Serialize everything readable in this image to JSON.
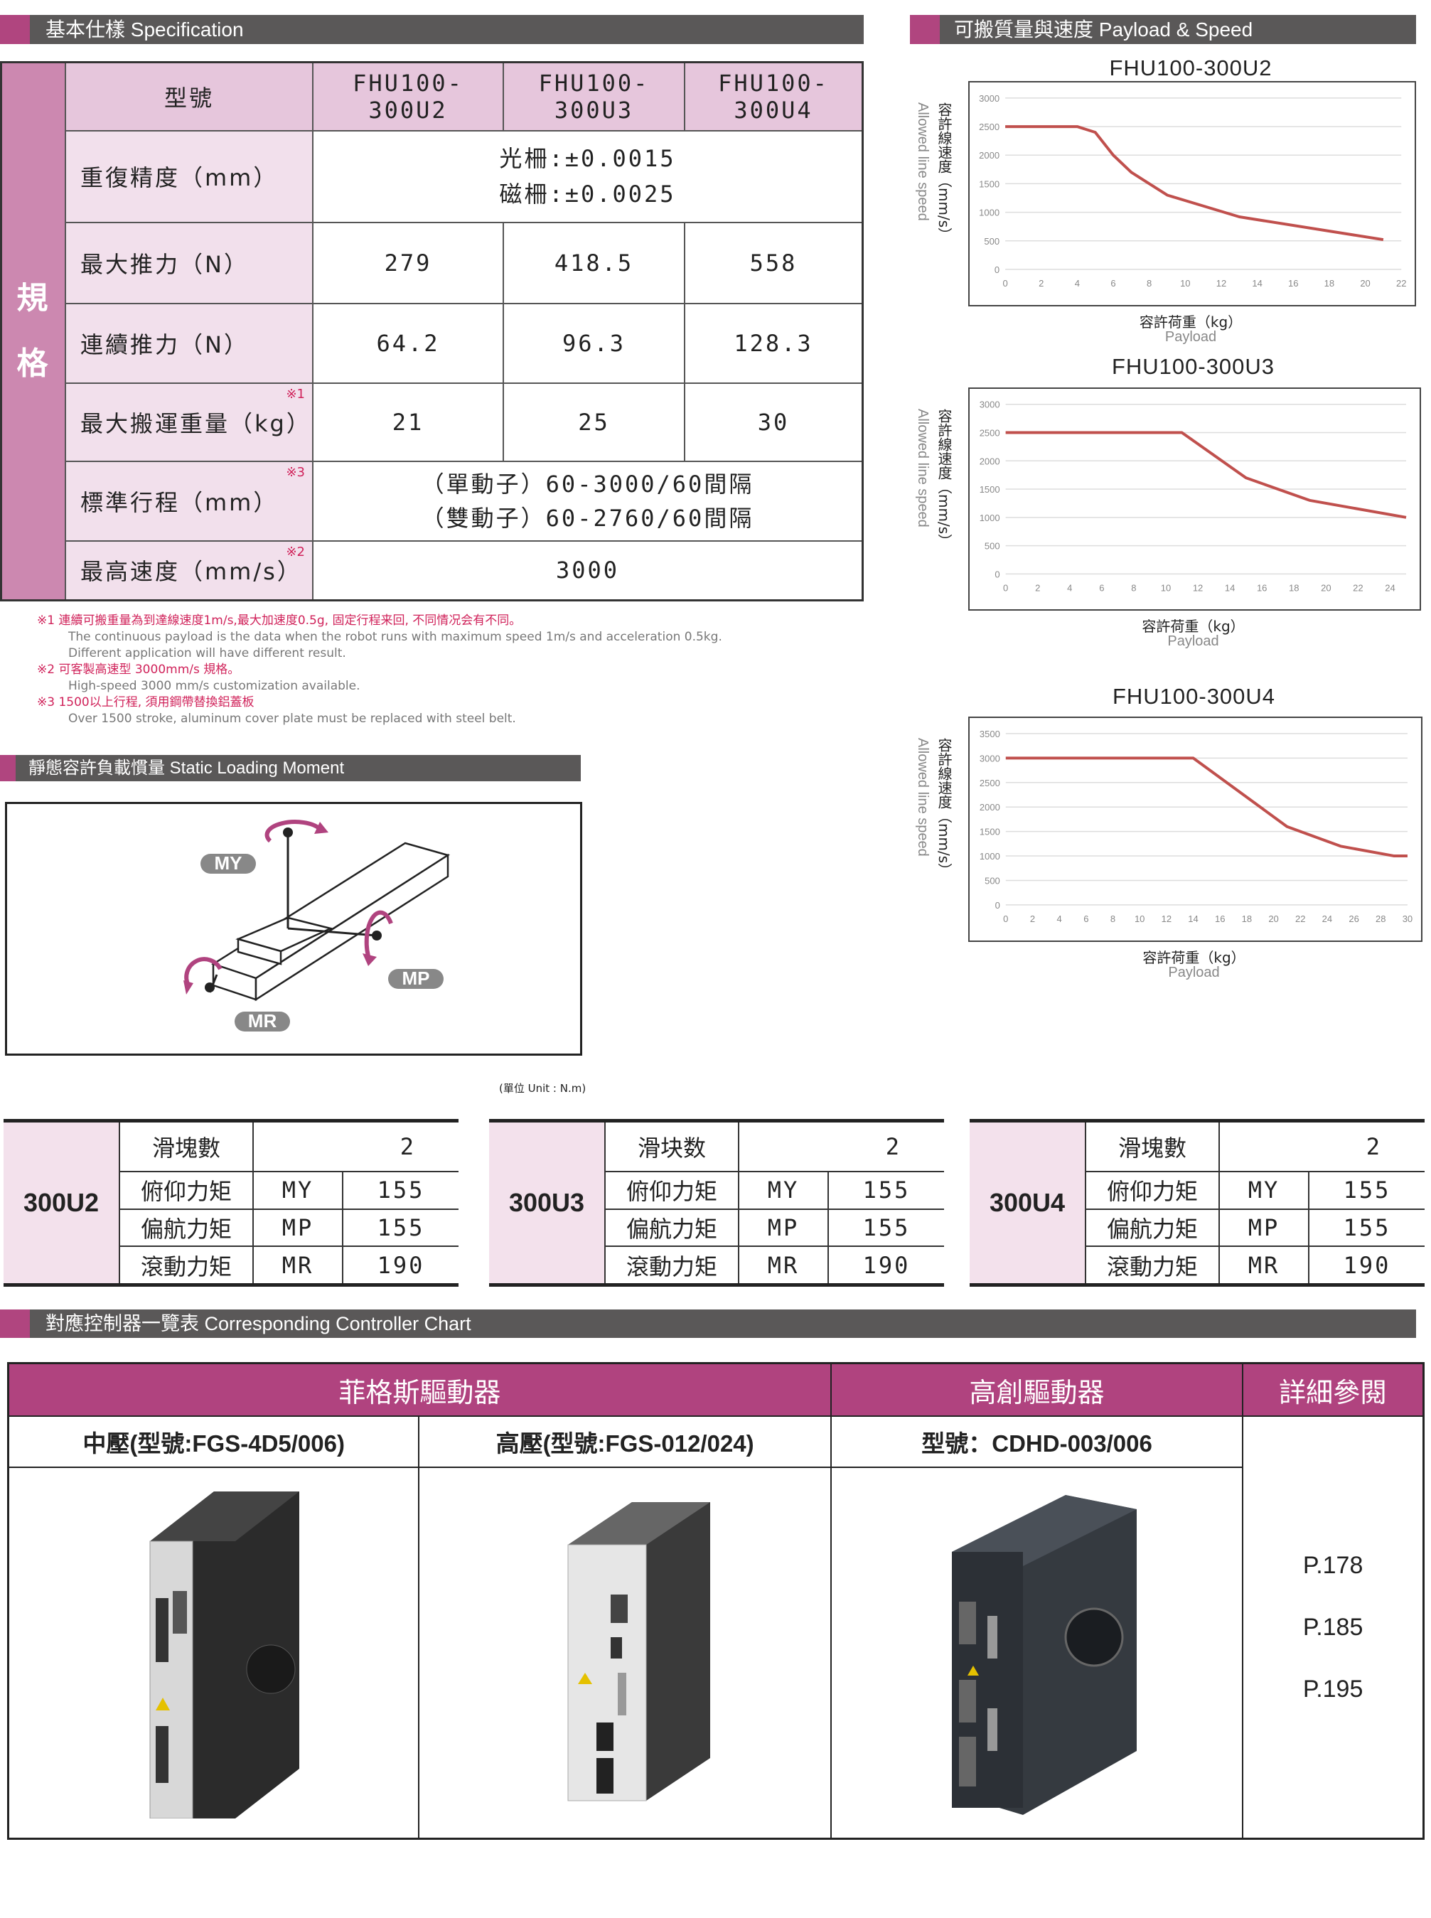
{
  "spec": {
    "title": "基本仕樣 Specification",
    "side_label": [
      "規",
      "格"
    ],
    "model_label": "型號",
    "models": [
      "FHU100-300U2",
      "FHU100-300U3",
      "FHU100-300U4"
    ],
    "rows": [
      {
        "label": "重復精度（mm）",
        "note": "",
        "merged": [
          "光柵:±0.0015",
          "磁柵:±0.0025"
        ]
      },
      {
        "label": "最大推力（N）",
        "note": "",
        "values": [
          "279",
          "418.5",
          "558"
        ]
      },
      {
        "label": "連續推力（N）",
        "note": "",
        "values": [
          "64.2",
          "96.3",
          "128.3"
        ]
      },
      {
        "label": "最大搬運重量（kg）",
        "note": "※1",
        "values": [
          "21",
          "25",
          "30"
        ]
      },
      {
        "label": "標準行程（mm）",
        "note": "※3",
        "merged": [
          "（單動子）60-3000/60間隔",
          "（雙動子）60-2760/60間隔"
        ]
      },
      {
        "label": "最高速度（mm/s）",
        "note": "※2",
        "merged": [
          "3000"
        ]
      }
    ]
  },
  "footnotes": [
    {
      "zh": "※1  連續可搬重量為到達線速度1m/s,最大加速度0.5g, 固定行程来回, 不同情况会有不同。",
      "en": [
        "The continuous payload is the data when the robot runs with maximum speed 1m/s and acceleration 0.5kg.",
        "Different application will have different result."
      ]
    },
    {
      "zh": "※2  可客製高速型 3000mm/s 規格。",
      "en": [
        "High-speed 3000 mm/s customization available."
      ]
    },
    {
      "zh": "※3  1500以上行程, 須用鋼帶替換鋁蓋板",
      "en": [
        "Over 1500 stroke, aluminum cover plate must be replaced with steel belt."
      ]
    }
  ],
  "payload_section": {
    "title": "可搬質量與速度  Payload & Speed"
  },
  "chart_data": [
    {
      "type": "line",
      "title": "FHU100-300U2",
      "ylabel": "容許線速度（mm/s）",
      "ylabel_en": "Allowed line speed",
      "xlabel": "容許荷重（kg）",
      "xlabel_en": "Payload",
      "xlim": [
        0,
        22
      ],
      "xticks": [
        0,
        2,
        4,
        6,
        8,
        10,
        12,
        14,
        16,
        18,
        20,
        22
      ],
      "ylim": [
        0,
        3000
      ],
      "yticks": [
        0,
        500,
        1000,
        1500,
        2000,
        2500,
        3000
      ],
      "grid": true,
      "color": "#c0504d",
      "x": [
        0,
        4,
        5,
        6,
        7,
        9,
        13,
        21
      ],
      "y": [
        2500,
        2500,
        2400,
        2000,
        1700,
        1300,
        920,
        520
      ]
    },
    {
      "type": "line",
      "title": "FHU100-300U3",
      "ylabel": "容許線速度（mm/s）",
      "ylabel_en": "Allowed line speed",
      "xlabel": "容許荷重（kg）",
      "xlabel_en": "Payload",
      "xlim": [
        0,
        25
      ],
      "xticks": [
        0,
        2,
        4,
        6,
        8,
        10,
        12,
        14,
        16,
        18,
        20,
        22,
        24
      ],
      "ylim": [
        0,
        3000
      ],
      "yticks": [
        0,
        500,
        1000,
        1500,
        2000,
        2500,
        3000
      ],
      "grid": true,
      "color": "#c0504d",
      "x": [
        0,
        11,
        15,
        19,
        25
      ],
      "y": [
        2500,
        2500,
        1700,
        1300,
        1000
      ]
    },
    {
      "type": "line",
      "title": "FHU100-300U4",
      "ylabel": "容許線速度（mm/s）",
      "ylabel_en": "Allowed line speed",
      "xlabel": "容許荷重（kg）",
      "xlabel_en": "Payload",
      "xlim": [
        0,
        30
      ],
      "xticks": [
        0,
        2,
        4,
        6,
        8,
        10,
        12,
        14,
        16,
        18,
        20,
        22,
        24,
        26,
        28,
        30
      ],
      "ylim": [
        0,
        3500
      ],
      "yticks": [
        0,
        500,
        1000,
        1500,
        2000,
        2500,
        3000,
        3500
      ],
      "grid": true,
      "color": "#c0504d",
      "x": [
        0,
        14,
        21,
        25,
        29,
        30
      ],
      "y": [
        3000,
        3000,
        1600,
        1200,
        1000,
        1000
      ]
    }
  ],
  "static_moment": {
    "title": "靜態容許負載慣量 Static Loading Moment",
    "labels": {
      "my": "MY",
      "mp": "MP",
      "mr": "MR"
    },
    "unit": "(單位 Unit : N.m)",
    "tables": [
      {
        "model": "300U2",
        "rows": [
          {
            "label": "滑塊數",
            "value": "2"
          },
          {
            "label": "俯仰力矩",
            "code": "MY",
            "value": "155"
          },
          {
            "label": "偏航力矩",
            "code": "MP",
            "value": "155"
          },
          {
            "label": "滾動力矩",
            "code": "MR",
            "value": "190"
          }
        ]
      },
      {
        "model": "300U3",
        "rows": [
          {
            "label": "滑块数",
            "value": "2"
          },
          {
            "label": "俯仰力矩",
            "code": "MY",
            "value": "155"
          },
          {
            "label": "偏航力矩",
            "code": "MP",
            "value": "155"
          },
          {
            "label": "滾動力矩",
            "code": "MR",
            "value": "190"
          }
        ]
      },
      {
        "model": "300U4",
        "rows": [
          {
            "label": "滑塊數",
            "value": "2"
          },
          {
            "label": "俯仰力矩",
            "code": "MY",
            "value": "155"
          },
          {
            "label": "偏航力矩",
            "code": "MP",
            "value": "155"
          },
          {
            "label": "滾動力矩",
            "code": "MR",
            "value": "190"
          }
        ]
      }
    ]
  },
  "controllers": {
    "title": "對應控制器一覽表 Corresponding Controller Chart",
    "groups": [
      "菲格斯驅動器",
      "高創驅動器",
      "詳細參閱"
    ],
    "models": [
      "中壓(型號:FGS-4D5/006)",
      "高壓(型號:FGS-012/024)",
      "型號：CDHD-003/006"
    ],
    "refs": [
      "P.178",
      "P.185",
      "P.195"
    ],
    "accent": "#b0437f"
  }
}
